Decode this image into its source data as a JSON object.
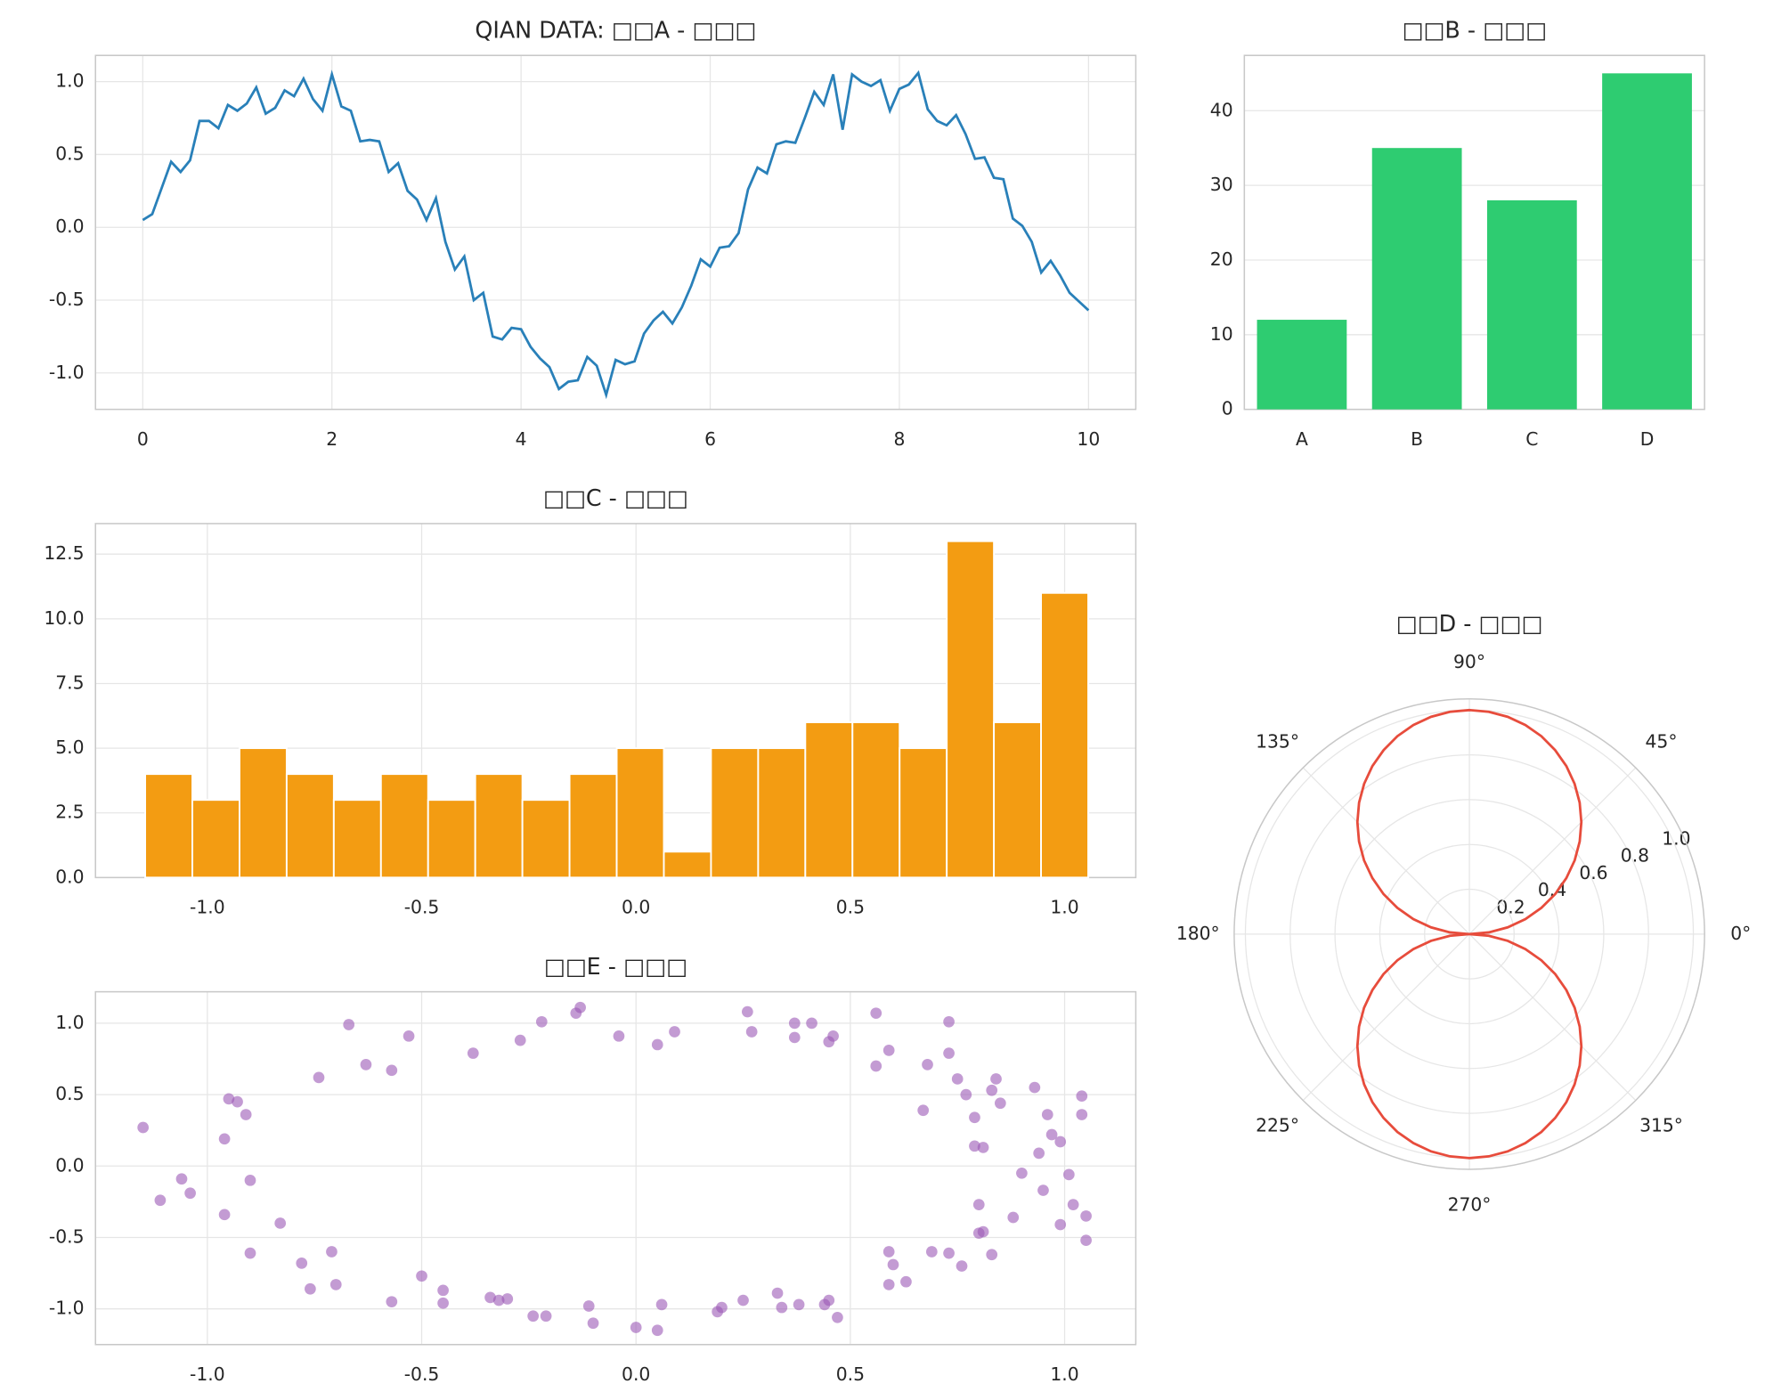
{
  "chart_data": [
    {
      "type": "line",
      "title": "QIAN DATA: □□A - □□□",
      "color": "#2980b9",
      "grid": true,
      "x": [
        0,
        0.1,
        0.2,
        0.3,
        0.4,
        0.5,
        0.6,
        0.7,
        0.8,
        0.9,
        1,
        1.1,
        1.2,
        1.3,
        1.4,
        1.5,
        1.6,
        1.7,
        1.8,
        1.9,
        2,
        2.1,
        2.2,
        2.3,
        2.4,
        2.5,
        2.6,
        2.7,
        2.8,
        2.9,
        3,
        3.1,
        3.2,
        3.3,
        3.4,
        3.5,
        3.6,
        3.7,
        3.8,
        3.9,
        4,
        4.1,
        4.2,
        4.3,
        4.4,
        4.5,
        4.6,
        4.7,
        4.8,
        4.9,
        5,
        5.1,
        5.2,
        5.3,
        5.4,
        5.5,
        5.6,
        5.7,
        5.8,
        5.9,
        6,
        6.1,
        6.2,
        6.3,
        6.4,
        6.5,
        6.6,
        6.7,
        6.8,
        6.9,
        7,
        7.1,
        7.2,
        7.3,
        7.4,
        7.5,
        7.6,
        7.7,
        7.8,
        7.9,
        8,
        8.1,
        8.2,
        8.3,
        8.4,
        8.5,
        8.6,
        8.7,
        8.8,
        8.9,
        9,
        9.1,
        9.2,
        9.3,
        9.4,
        9.5,
        9.6,
        9.7,
        9.8,
        9.9,
        10
      ],
      "values": [
        0.05,
        0.09,
        0.27,
        0.45,
        0.38,
        0.46,
        0.73,
        0.73,
        0.68,
        0.84,
        0.8,
        0.85,
        0.96,
        0.78,
        0.82,
        0.94,
        0.9,
        1.02,
        0.88,
        0.8,
        1.05,
        0.83,
        0.8,
        0.59,
        0.6,
        0.59,
        0.38,
        0.44,
        0.25,
        0.19,
        0.05,
        0.2,
        -0.1,
        -0.29,
        -0.2,
        -0.5,
        -0.45,
        -0.75,
        -0.77,
        -0.69,
        -0.7,
        -0.82,
        -0.9,
        -0.96,
        -1.11,
        -1.06,
        -1.05,
        -0.89,
        -0.95,
        -1.15,
        -0.91,
        -0.94,
        -0.92,
        -0.73,
        -0.64,
        -0.58,
        -0.66,
        -0.55,
        -0.4,
        -0.22,
        -0.27,
        -0.14,
        -0.13,
        -0.04,
        0.26,
        0.41,
        0.37,
        0.57,
        0.59,
        0.58,
        0.75,
        0.93,
        0.84,
        1.05,
        0.67,
        1.05,
        1.0,
        0.97,
        1.01,
        0.8,
        0.95,
        0.98,
        1.06,
        0.81,
        0.73,
        0.7,
        0.77,
        0.64,
        0.47,
        0.48,
        0.34,
        0.33,
        0.06,
        0.01,
        -0.1,
        -0.31,
        -0.23,
        -0.33,
        -0.45,
        -0.51,
        -0.57
      ],
      "xlim": [
        -0.5,
        10.5
      ],
      "xticks": [
        0,
        2,
        4,
        6,
        8,
        10
      ],
      "ylim": [
        -1.25,
        1.18
      ],
      "yticks": [
        {
          "value": -1,
          "label": "-1.0"
        },
        {
          "value": -0.5,
          "label": "-0.5"
        },
        {
          "value": 0,
          "label": "0.0"
        },
        {
          "value": 0.5,
          "label": "0.5"
        },
        {
          "value": 1,
          "label": "1.0"
        }
      ]
    },
    {
      "type": "bar",
      "title": "□□B - □□□",
      "color": "#2ecc71",
      "grid": true,
      "categories": [
        "A",
        "B",
        "C",
        "D"
      ],
      "values": [
        12,
        35,
        28,
        45
      ],
      "ylim": [
        0,
        47.4
      ],
      "yticks": [
        0,
        10,
        20,
        30,
        40
      ]
    },
    {
      "type": "histogram",
      "title": "□□C - □□□",
      "color": "#f39c12",
      "grid": true,
      "bins": [
        -1.145,
        -1.035,
        -0.925,
        -0.815,
        -0.705,
        -0.595,
        -0.485,
        -0.375,
        -0.265,
        -0.155,
        -0.045,
        0.065,
        0.175,
        0.285,
        0.395,
        0.505,
        0.615,
        0.725,
        0.835,
        0.945,
        1.055
      ],
      "values": [
        4,
        3,
        5,
        4,
        3,
        4,
        3,
        4,
        3,
        4,
        5,
        1,
        5,
        5,
        6,
        6,
        5,
        13,
        6,
        11
      ],
      "xlim": [
        -1.261,
        1.166
      ],
      "xticks": [
        {
          "value": -1,
          "label": "-1.0"
        },
        {
          "value": -0.5,
          "label": "-0.5"
        },
        {
          "value": 0,
          "label": "0.0"
        },
        {
          "value": 0.5,
          "label": "0.5"
        },
        {
          "value": 1,
          "label": "1.0"
        }
      ],
      "ylim": [
        0,
        13.68
      ],
      "yticks": [
        {
          "value": 0,
          "label": "0.0"
        },
        2.5,
        {
          "value": 5,
          "label": "5.0"
        },
        7.5,
        {
          "value": 10,
          "label": "10.0"
        },
        12.5
      ]
    },
    {
      "type": "polar",
      "title": "□□D - □□□",
      "color": "#e74c3c",
      "grid": true,
      "theta": [
        0,
        5,
        10,
        15,
        20,
        25,
        30,
        35,
        40,
        45,
        50,
        55,
        60,
        65,
        70,
        75,
        80,
        85,
        90,
        95,
        100,
        105,
        110,
        115,
        120,
        125,
        130,
        135,
        140,
        145,
        150,
        155,
        160,
        165,
        170,
        175,
        180,
        185,
        190,
        195,
        200,
        205,
        210,
        215,
        220,
        225,
        230,
        235,
        240,
        245,
        250,
        255,
        260,
        265,
        270,
        275,
        280,
        285,
        290,
        295,
        300,
        305,
        310,
        315,
        320,
        325,
        330,
        335,
        340,
        345,
        350,
        355,
        360
      ],
      "r": [
        0,
        0.087,
        0.174,
        0.259,
        0.342,
        0.423,
        0.5,
        0.574,
        0.643,
        0.707,
        0.766,
        0.819,
        0.866,
        0.906,
        0.94,
        0.966,
        0.985,
        0.996,
        1,
        0.996,
        0.985,
        0.966,
        0.94,
        0.906,
        0.866,
        0.819,
        0.766,
        0.707,
        0.643,
        0.574,
        0.5,
        0.423,
        0.342,
        0.259,
        0.174,
        0.087,
        0,
        0.087,
        0.174,
        0.259,
        0.342,
        0.423,
        0.5,
        0.574,
        0.643,
        0.707,
        0.766,
        0.819,
        0.866,
        0.906,
        0.94,
        0.966,
        0.985,
        0.996,
        1,
        0.996,
        0.985,
        0.966,
        0.94,
        0.906,
        0.866,
        0.819,
        0.766,
        0.707,
        0.643,
        0.574,
        0.5,
        0.423,
        0.342,
        0.259,
        0.174,
        0.087,
        0
      ],
      "rlim": [
        0,
        1.05
      ],
      "rticks": [
        0.2,
        0.4,
        0.6,
        0.8,
        {
          "value": 1,
          "label": "1.0"
        }
      ],
      "thetaticks": [
        {
          "value": 0,
          "label": "0°"
        },
        {
          "value": 45,
          "label": "45°"
        },
        {
          "value": 90,
          "label": "90°"
        },
        {
          "value": 135,
          "label": "135°"
        },
        {
          "value": 180,
          "label": "180°"
        },
        {
          "value": 225,
          "label": "225°"
        },
        {
          "value": 270,
          "label": "270°"
        },
        {
          "value": 315,
          "label": "315°"
        }
      ]
    },
    {
      "type": "scatter",
      "title": "□□E - □□□",
      "color": "#9b59b6",
      "grid": true,
      "x": [
        -1.15,
        -1.11,
        -1.06,
        -1.04,
        -0.96,
        -0.96,
        -0.95,
        -0.93,
        -0.91,
        -0.9,
        -0.9,
        -0.83,
        -0.78,
        -0.76,
        -0.74,
        -0.71,
        -0.7,
        -0.67,
        -0.63,
        -0.57,
        -0.57,
        -0.53,
        -0.5,
        -0.45,
        -0.45,
        -0.38,
        -0.34,
        -0.32,
        -0.3,
        -0.27,
        -0.24,
        -0.22,
        -0.21,
        -0.14,
        -0.13,
        -0.11,
        -0.1,
        -0.04,
        0.0,
        0.05,
        0.05,
        0.06,
        0.09,
        0.19,
        0.2,
        0.25,
        0.26,
        0.27,
        0.33,
        0.34,
        0.37,
        0.37,
        0.38,
        0.41,
        0.44,
        0.45,
        0.45,
        0.46,
        0.47,
        0.56,
        0.56,
        0.59,
        0.59,
        0.59,
        0.6,
        0.63,
        0.67,
        0.68,
        0.69,
        0.73,
        0.73,
        0.73,
        0.75,
        0.76,
        0.77,
        0.79,
        0.79,
        0.8,
        0.8,
        0.81,
        0.81,
        0.83,
        0.83,
        0.84,
        0.85,
        0.88,
        0.9,
        0.93,
        0.94,
        0.95,
        0.96,
        0.97,
        0.99,
        0.99,
        1.01,
        1.02,
        1.04,
        1.04,
        1.05,
        1.05
      ],
      "values": [
        0.27,
        -0.24,
        -0.09,
        -0.19,
        -0.34,
        0.19,
        0.47,
        0.45,
        0.36,
        -0.1,
        -0.61,
        -0.4,
        -0.68,
        -0.86,
        0.62,
        -0.6,
        -0.83,
        0.99,
        0.71,
        0.67,
        -0.95,
        0.91,
        -0.77,
        -0.87,
        -0.96,
        0.79,
        -0.92,
        -0.94,
        -0.93,
        0.88,
        -1.05,
        1.01,
        -1.05,
        1.07,
        1.11,
        -0.98,
        -1.1,
        0.91,
        -1.13,
        0.85,
        -1.15,
        -0.97,
        0.94,
        -1.02,
        -0.99,
        -0.94,
        1.08,
        0.94,
        -0.89,
        -0.99,
        1.0,
        0.9,
        -0.97,
        1.0,
        -0.97,
        0.87,
        -0.94,
        0.91,
        -1.06,
        1.07,
        0.7,
        -0.6,
        -0.83,
        0.81,
        -0.69,
        -0.81,
        0.39,
        0.71,
        -0.6,
        0.79,
        1.01,
        -0.61,
        0.61,
        -0.7,
        0.5,
        0.34,
        0.14,
        -0.27,
        -0.47,
        -0.46,
        0.13,
        -0.62,
        0.53,
        0.61,
        0.44,
        -0.36,
        -0.05,
        0.55,
        0.09,
        -0.17,
        0.36,
        0.22,
        -0.41,
        0.17,
        -0.06,
        -0.27,
        0.49,
        0.36,
        -0.35,
        -0.52
      ],
      "xlim": [
        -1.261,
        1.166
      ],
      "xticks": [
        {
          "value": -1,
          "label": "-1.0"
        },
        {
          "value": -0.5,
          "label": "-0.5"
        },
        {
          "value": 0,
          "label": "0.0"
        },
        {
          "value": 0.5,
          "label": "0.5"
        },
        {
          "value": 1,
          "label": "1.0"
        }
      ],
      "ylim": [
        -1.25,
        1.22
      ],
      "yticks": [
        {
          "value": -1,
          "label": "-1.0"
        },
        {
          "value": -0.5,
          "label": "-0.5"
        },
        {
          "value": 0,
          "label": "0.0"
        },
        {
          "value": 0.5,
          "label": "0.5"
        },
        {
          "value": 1,
          "label": "1.0"
        }
      ]
    }
  ]
}
